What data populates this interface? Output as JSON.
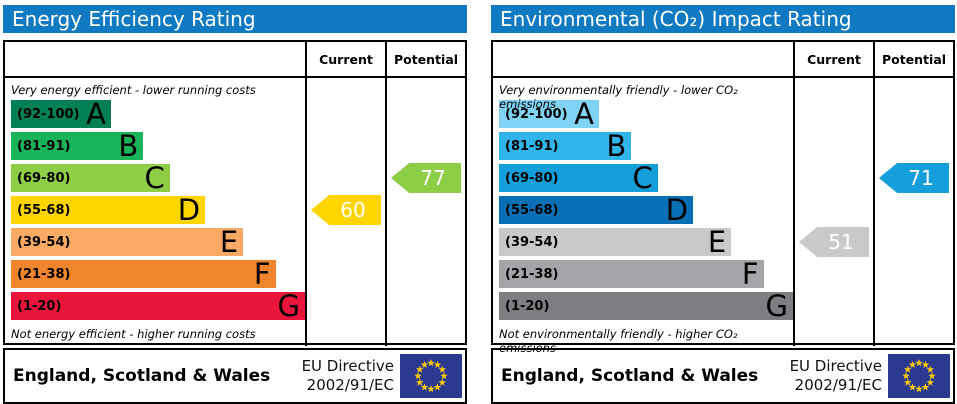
{
  "theme": {
    "header_blue": "#0f79c1",
    "border_black": "#000000",
    "eu_flag_blue": "#2b3990",
    "eu_star_yellow": "#ffcc00",
    "arrow_text_white": "#ffffff"
  },
  "panels": [
    {
      "id": "energy-efficiency",
      "title": "Energy Efficiency Rating",
      "columns": {
        "current": "Current",
        "potential": "Potential"
      },
      "top_note": "Very energy efficient - lower running costs",
      "bottom_note": "Not energy efficient - higher running costs",
      "bands": [
        {
          "range": "(92-100)",
          "letter": "A",
          "color": "#008054",
          "width": "34%"
        },
        {
          "range": "(81-91)",
          "letter": "B",
          "color": "#19b459",
          "width": "45%"
        },
        {
          "range": "(69-80)",
          "letter": "C",
          "color": "#8dce46",
          "width": "54%"
        },
        {
          "range": "(55-68)",
          "letter": "D",
          "color": "#ffd500",
          "width": "66%"
        },
        {
          "range": "(39-54)",
          "letter": "E",
          "color": "#fbaa65",
          "width": "79%"
        },
        {
          "range": "(21-38)",
          "letter": "F",
          "color": "#f1852d",
          "width": "90%"
        },
        {
          "range": "(1-20)",
          "letter": "G",
          "color": "#e9153b",
          "width": "100%"
        }
      ],
      "current": {
        "value": "60",
        "band": "D",
        "band_index": 3,
        "color": "#ffd500"
      },
      "potential": {
        "value": "77",
        "band": "C",
        "band_index": 2,
        "color": "#8dce46"
      },
      "footer": {
        "region": "England, Scotland & Wales",
        "directive_line1": "EU Directive",
        "directive_line2": "2002/91/EC",
        "flag_icon": "eu-flag"
      }
    },
    {
      "id": "environmental-co2-impact",
      "title": "Environmental (CO₂) Impact Rating",
      "columns": {
        "current": "Current",
        "potential": "Potential"
      },
      "top_note": "Very environmentally friendly - lower CO₂ emissions",
      "bottom_note": "Not environmentally friendly - higher CO₂ emissions",
      "bands": [
        {
          "range": "(92-100)",
          "letter": "A",
          "color": "#81d3f5",
          "width": "34%"
        },
        {
          "range": "(81-91)",
          "letter": "B",
          "color": "#31b4e9",
          "width": "45%"
        },
        {
          "range": "(69-80)",
          "letter": "C",
          "color": "#149fda",
          "width": "54%"
        },
        {
          "range": "(55-68)",
          "letter": "D",
          "color": "#0a70b5",
          "width": "66%"
        },
        {
          "range": "(39-54)",
          "letter": "E",
          "color": "#c8c9cb",
          "width": "79%"
        },
        {
          "range": "(21-38)",
          "letter": "F",
          "color": "#a3a5a8",
          "width": "90%"
        },
        {
          "range": "(1-20)",
          "letter": "G",
          "color": "#7c7e81",
          "width": "100%"
        }
      ],
      "current": {
        "value": "51",
        "band": "E",
        "band_index": 4,
        "color": "#c8c9cb"
      },
      "potential": {
        "value": "71",
        "band": "C",
        "band_index": 2,
        "color": "#149fda"
      },
      "footer": {
        "region": "England, Scotland & Wales",
        "directive_line1": "EU Directive",
        "directive_line2": "2002/91/EC",
        "flag_icon": "eu-flag"
      }
    }
  ],
  "chart_data": [
    {
      "type": "bar",
      "title": "Energy Efficiency Rating",
      "categories": [
        "A (92-100)",
        "B (81-91)",
        "C (69-80)",
        "D (55-68)",
        "E (39-54)",
        "F (21-38)",
        "G (1-20)"
      ],
      "values": [
        34,
        45,
        54,
        66,
        79,
        90,
        100
      ],
      "values_note": "relative band bar lengths as % of band column width",
      "band_colors": [
        "#008054",
        "#19b459",
        "#8dce46",
        "#ffd500",
        "#fbaa65",
        "#f1852d",
        "#e9153b"
      ],
      "markers": [
        {
          "label": "Current",
          "value": 60,
          "band": "D",
          "color": "#ffd500"
        },
        {
          "label": "Potential",
          "value": 77,
          "band": "C",
          "color": "#8dce46"
        }
      ],
      "scale_range": [
        1,
        100
      ],
      "legend": [
        "Current",
        "Potential"
      ],
      "legend_position": "top-right-columns"
    },
    {
      "type": "bar",
      "title": "Environmental (CO₂) Impact Rating",
      "categories": [
        "A (92-100)",
        "B (81-91)",
        "C (69-80)",
        "D (55-68)",
        "E (39-54)",
        "F (21-38)",
        "G (1-20)"
      ],
      "values": [
        34,
        45,
        54,
        66,
        79,
        90,
        100
      ],
      "values_note": "relative band bar lengths as % of band column width",
      "band_colors": [
        "#81d3f5",
        "#31b4e9",
        "#149fda",
        "#0a70b5",
        "#c8c9cb",
        "#a3a5a8",
        "#7c7e81"
      ],
      "markers": [
        {
          "label": "Current",
          "value": 51,
          "band": "E",
          "color": "#c8c9cb"
        },
        {
          "label": "Potential",
          "value": 71,
          "band": "C",
          "color": "#149fda"
        }
      ],
      "scale_range": [
        1,
        100
      ],
      "legend": [
        "Current",
        "Potential"
      ],
      "legend_position": "top-right-columns"
    }
  ]
}
